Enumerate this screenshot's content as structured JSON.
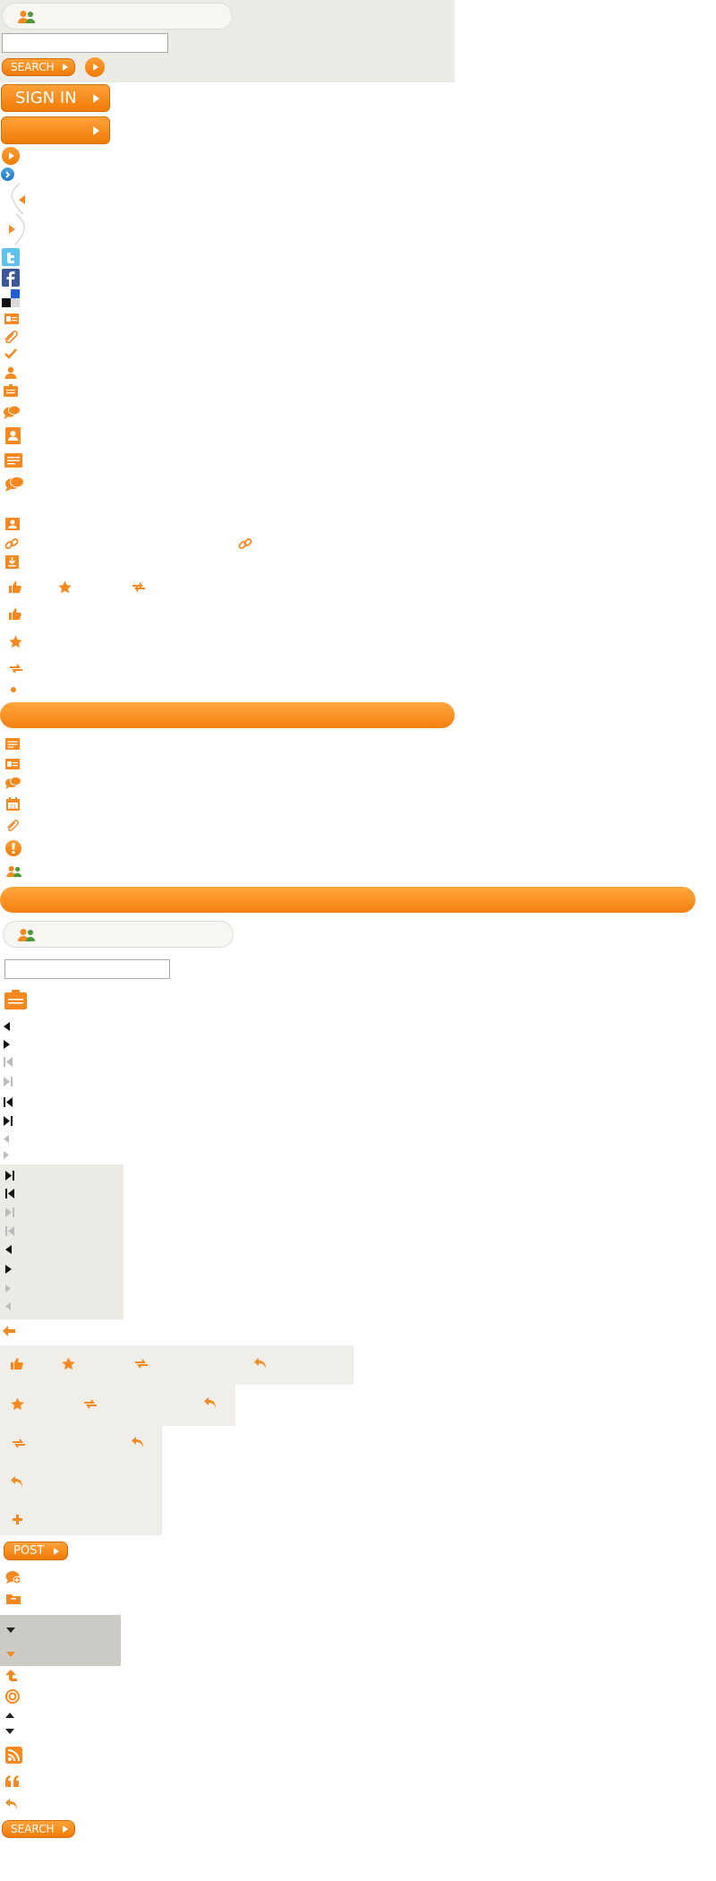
{
  "top_search": {
    "search_button_label": "SEARCH"
  },
  "buttons": {
    "sign_in_label": "SIGN IN",
    "blank_button_label": "",
    "post_label": "POST",
    "search_bottom_label": "SEARCH"
  },
  "colors": {
    "accent_orange": "#f58a1f",
    "panel_beige": "#ecebe5",
    "panel_gray": "#cccbc5",
    "twitter_blue": "#5ec1eb",
    "facebook_blue": "#3b5998",
    "delicious_blue": "#1f5fd1"
  },
  "icons": {
    "sprite_column": [
      "play-circle-icon",
      "chevron-circle-blue-icon",
      "slide-left-icon",
      "slide-right-icon",
      "twitter-icon",
      "facebook-icon",
      "delicious-icon",
      "id-card-icon",
      "paperclip-icon",
      "checkmark-icon",
      "user-icon",
      "clipboard-icon",
      "chat-bubbles-icon",
      "contact-card-icon",
      "notepad-icon",
      "chat-bubbles-large-icon",
      "contact-small-icon",
      "link-icon",
      "download-box-icon",
      "thumbs-up-icon",
      "star-icon",
      "swap-arrows-icon",
      "dot-icon"
    ]
  }
}
